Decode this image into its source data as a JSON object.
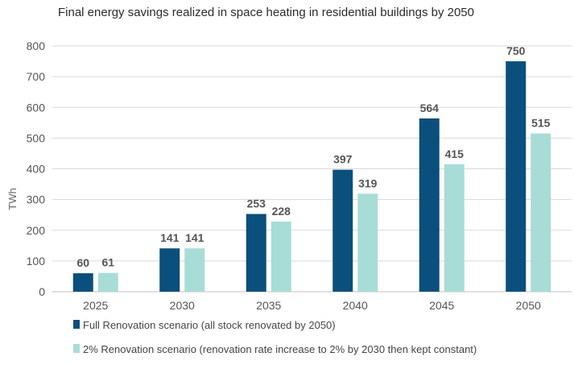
{
  "chart_data": {
    "type": "bar",
    "title": "Final energy savings realized in space heating in residential buildings by 2050",
    "xlabel": "",
    "ylabel": "TWh",
    "categories": [
      "2025",
      "2030",
      "2035",
      "2040",
      "2045",
      "2050"
    ],
    "y_ticks": [
      "0",
      "100",
      "200",
      "300",
      "400",
      "500",
      "600",
      "700",
      "800"
    ],
    "ylim": [
      0,
      800
    ],
    "grid": true,
    "legend_position": "bottom",
    "series": [
      {
        "name": "Full Renovation scenario (all stock renovated by 2050)",
        "color": "#0b4f7c",
        "values": [
          60,
          141,
          253,
          397,
          564,
          750
        ],
        "labels": [
          "60",
          "141",
          "253",
          "397",
          "564",
          "750"
        ]
      },
      {
        "name": "2% Renovation scenario (renovation rate increase to 2% by 2030 then kept constant)",
        "color": "#a8dcd7",
        "values": [
          61,
          141,
          228,
          319,
          415,
          515
        ],
        "labels": [
          "61",
          "141",
          "228",
          "319",
          "415",
          "515"
        ]
      }
    ]
  }
}
